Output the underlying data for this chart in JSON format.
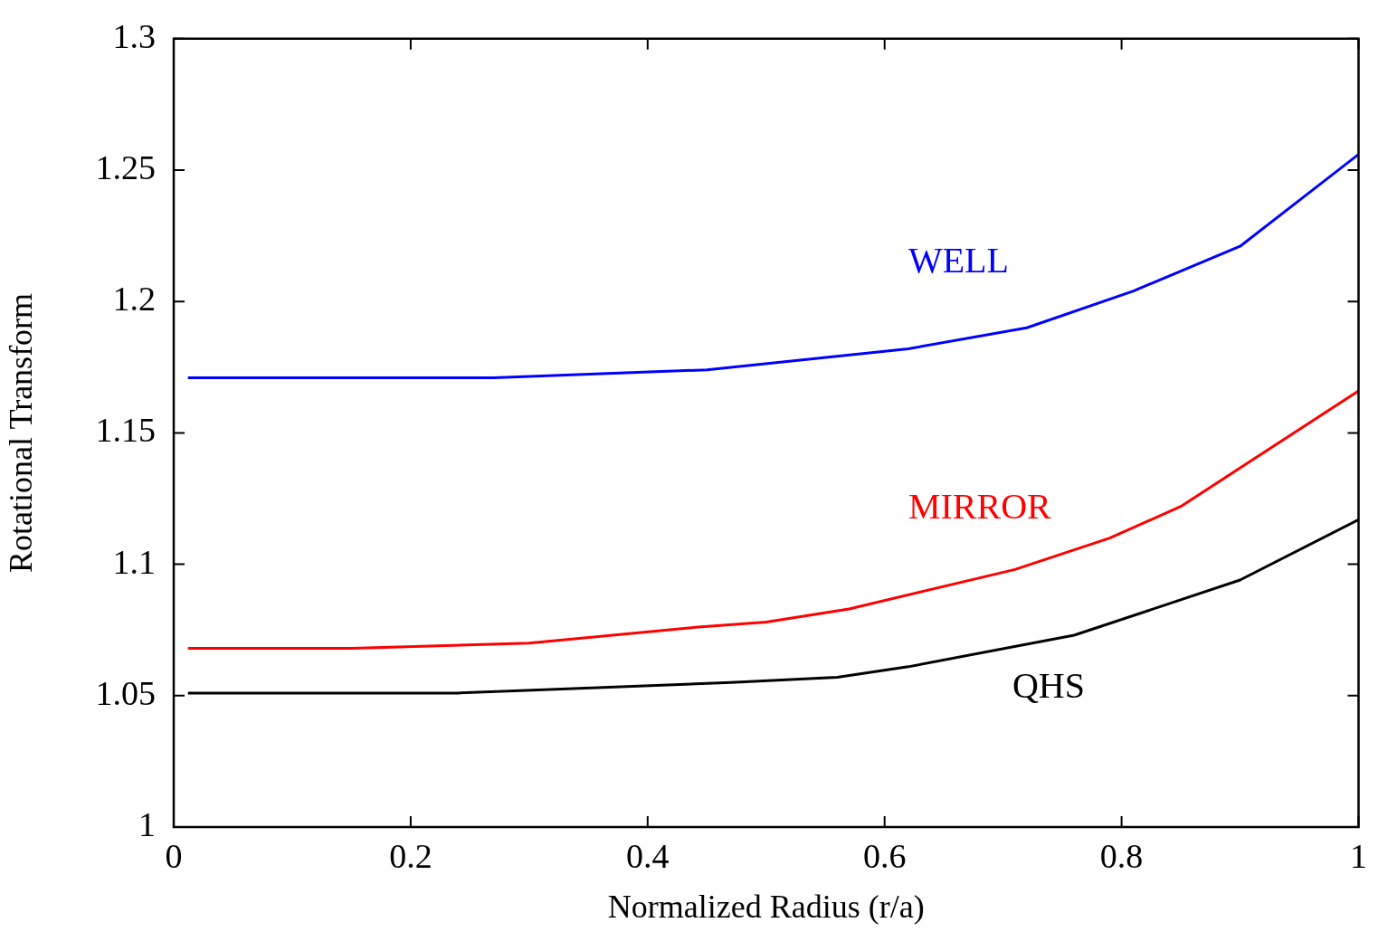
{
  "chart_data": {
    "type": "line",
    "xlabel": "Normalized Radius (r/a)",
    "ylabel": "Rotational Transform",
    "xlim": [
      0,
      1
    ],
    "ylim": [
      1,
      1.3
    ],
    "xticks": [
      0,
      0.2,
      0.4,
      0.6,
      0.8,
      1
    ],
    "yticks": [
      1,
      1.05,
      1.1,
      1.15,
      1.2,
      1.25,
      1.3
    ],
    "grid": false,
    "legend": false,
    "marker": "none",
    "line_style": "solid",
    "series": [
      {
        "name": "WELL",
        "color": "#0000ff",
        "x": [
          0.012,
          0.27,
          0.45,
          0.62,
          0.72,
          0.81,
          0.9,
          1.0
        ],
        "values": [
          1.171,
          1.171,
          1.174,
          1.182,
          1.19,
          1.204,
          1.221,
          1.256
        ]
      },
      {
        "name": "MIRROR",
        "color": "#ff0000",
        "x": [
          0.012,
          0.15,
          0.3,
          0.44,
          0.5,
          0.57,
          0.71,
          0.79,
          0.85,
          1.0
        ],
        "values": [
          1.068,
          1.068,
          1.07,
          1.076,
          1.078,
          1.083,
          1.098,
          1.11,
          1.122,
          1.166
        ]
      },
      {
        "name": "QHS",
        "color": "#000000",
        "x": [
          0.012,
          0.24,
          0.47,
          0.56,
          0.62,
          0.76,
          0.9,
          1.0
        ],
        "values": [
          1.051,
          1.051,
          1.055,
          1.057,
          1.061,
          1.073,
          1.094,
          1.117
        ]
      }
    ]
  }
}
